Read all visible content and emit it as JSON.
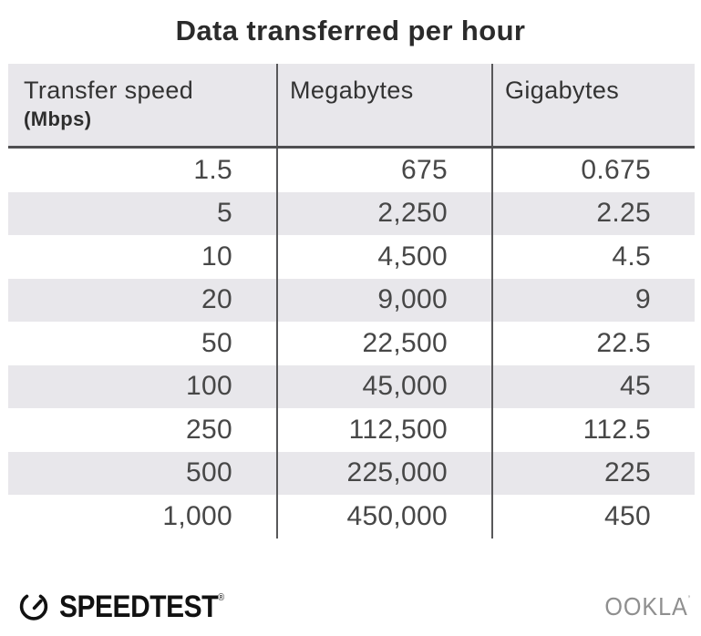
{
  "title": "Data transferred per hour",
  "table": {
    "columns": [
      {
        "label": "Transfer speed",
        "sublabel": "(Mbps)"
      },
      {
        "label": "Megabytes"
      },
      {
        "label": "Gigabytes"
      }
    ],
    "rows": [
      [
        "1.5",
        "675",
        "0.675"
      ],
      [
        "5",
        "2,250",
        "2.25"
      ],
      [
        "10",
        "4,500",
        "4.5"
      ],
      [
        "20",
        "9,000",
        "9"
      ],
      [
        "50",
        "22,500",
        "22.5"
      ],
      [
        "100",
        "45,000",
        "45"
      ],
      [
        "250",
        "112,500",
        "112.5"
      ],
      [
        "500",
        "225,000",
        "225"
      ],
      [
        "1,000",
        "450,000",
        "450"
      ]
    ]
  },
  "footer": {
    "speedtest_label": "SPEEDTEST",
    "speedtest_trademark": "®",
    "ookla_label": "OOKLA",
    "ookla_trademark": "’"
  },
  "colors": {
    "stripe_bg": "#e8e7eb",
    "header_bg": "#e8e7eb",
    "divider_line": "#58585a",
    "header_underline": "#4f4f51",
    "value_text": "#474747",
    "title_text": "#2b2b2b",
    "ookla_gray": "#8f8f8f",
    "logo_black": "#111111"
  },
  "chart_data": {
    "type": "table",
    "title": "Data transferred per hour",
    "columns": [
      "Transfer speed (Mbps)",
      "Megabytes",
      "Gigabytes"
    ],
    "rows": [
      [
        1.5,
        675,
        0.675
      ],
      [
        5,
        2250,
        2.25
      ],
      [
        10,
        4500,
        4.5
      ],
      [
        20,
        9000,
        9
      ],
      [
        50,
        22500,
        22.5
      ],
      [
        100,
        45000,
        45
      ],
      [
        250,
        112500,
        112.5
      ],
      [
        500,
        225000,
        225
      ],
      [
        1000,
        450000,
        450
      ]
    ]
  }
}
